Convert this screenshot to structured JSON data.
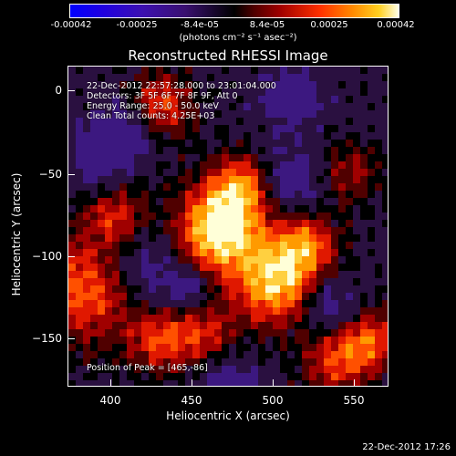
{
  "colorbar": {
    "ticks": [
      "-0.00042",
      "-0.00025",
      "-8.4e-05",
      "8.4e-05",
      "0.00025",
      "0.00042"
    ],
    "units": "(photons cm⁻² s⁻¹ asec⁻²)"
  },
  "title": "Reconstructed RHESSI Image",
  "annotations": {
    "time": "22-Dec-2012 22:57:28.000 to 23:01:04.000",
    "detectors": "Detectors: 3F 5F 6F 7F 8F 9F, Att 0",
    "energy": "Energy Range: 25.0 - 50.0 keV",
    "clean": "Clean    Total counts: 4.25E+03",
    "peak": "Position of Peak = [465,-86]"
  },
  "axes": {
    "xlabel": "Heliocentric X (arcsec)",
    "ylabel": "Heliocentric Y (arcsec)",
    "xticks": [
      "400",
      "450",
      "500",
      "550"
    ],
    "yticks": [
      "0",
      "−50",
      "−100",
      "−150"
    ]
  },
  "datestamp": "22-Dec-2012 17:26"
}
